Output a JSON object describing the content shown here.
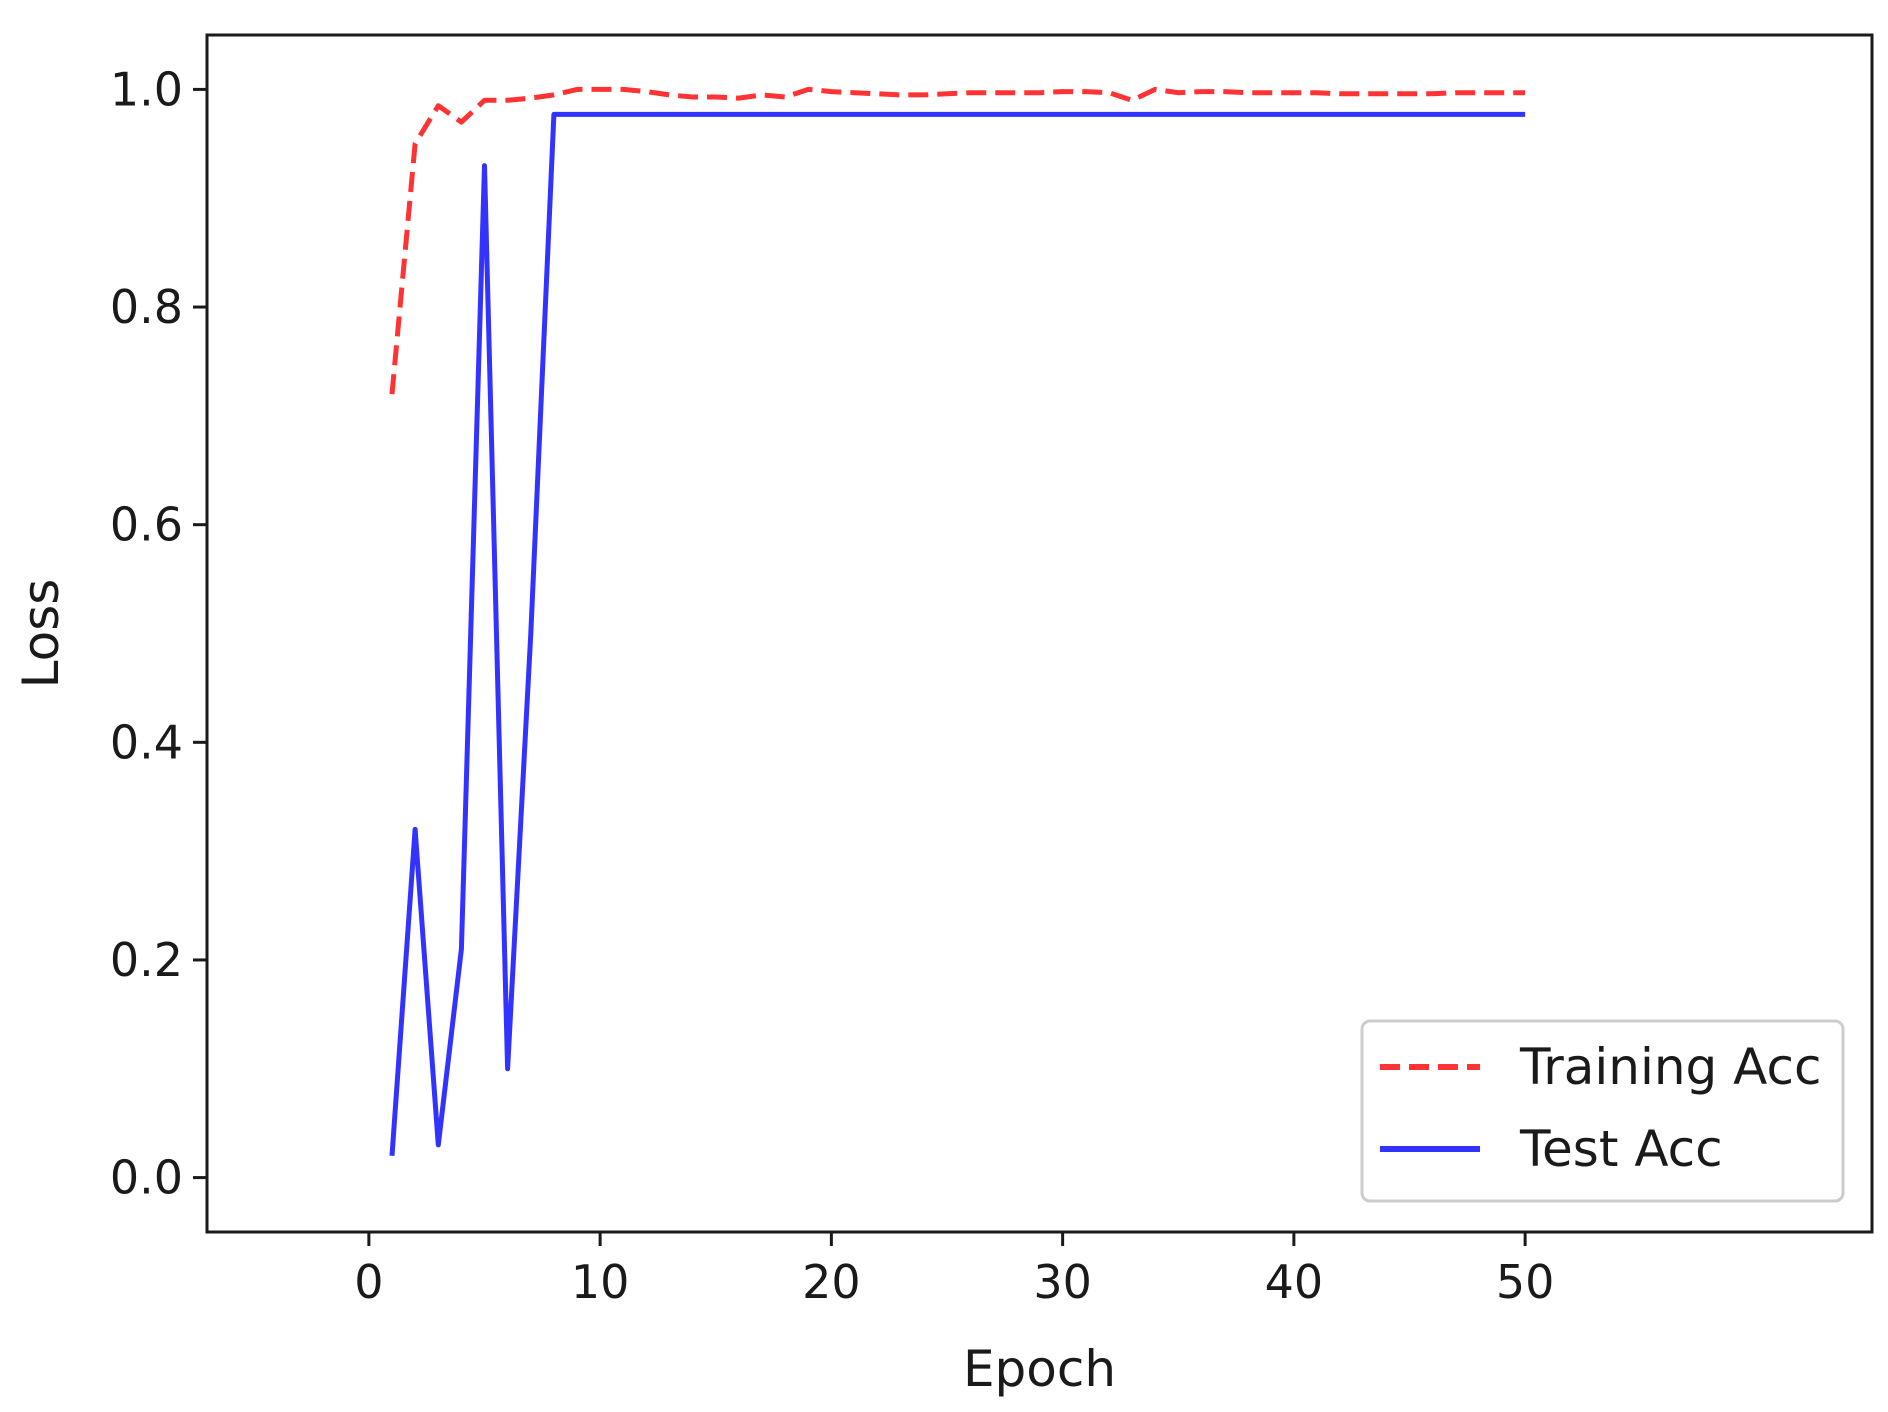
{
  "chart_data": {
    "type": "line",
    "title": "",
    "xlabel": "Epoch",
    "ylabel": "Loss",
    "xlim": [
      -7,
      65
    ],
    "ylim": [
      -0.05,
      1.05
    ],
    "xticks": [
      0,
      10,
      20,
      30,
      40,
      50
    ],
    "xtick_labels": [
      "0",
      "10",
      "20",
      "30",
      "40",
      "50"
    ],
    "yticks": [
      0.0,
      0.2,
      0.4,
      0.6,
      0.8,
      1.0
    ],
    "ytick_labels": [
      "0.0",
      "0.2",
      "0.4",
      "0.6",
      "0.8",
      "1.0"
    ],
    "grid": false,
    "legend_position": "lower-right",
    "x": [
      1,
      2,
      3,
      4,
      5,
      6,
      7,
      8,
      9,
      10,
      11,
      12,
      13,
      14,
      15,
      16,
      17,
      18,
      19,
      20,
      21,
      22,
      23,
      24,
      25,
      26,
      27,
      28,
      29,
      30,
      31,
      32,
      33,
      34,
      35,
      36,
      37,
      38,
      39,
      40,
      41,
      42,
      43,
      44,
      45,
      46,
      47,
      48,
      49,
      50
    ],
    "series": [
      {
        "name": "Training Acc",
        "color": "#ff3333",
        "line_style": "dashed",
        "values": [
          0.72,
          0.95,
          0.985,
          0.97,
          0.99,
          0.99,
          0.992,
          0.995,
          1.0,
          1.0,
          1.0,
          0.998,
          0.995,
          0.993,
          0.993,
          0.992,
          0.995,
          0.993,
          1.0,
          0.998,
          0.997,
          0.996,
          0.995,
          0.995,
          0.996,
          0.997,
          0.997,
          0.997,
          0.997,
          0.998,
          0.998,
          0.997,
          0.99,
          1.0,
          0.997,
          0.998,
          0.998,
          0.997,
          0.997,
          0.997,
          0.997,
          0.996,
          0.996,
          0.996,
          0.996,
          0.996,
          0.997,
          0.997,
          0.997,
          0.997
        ]
      },
      {
        "name": "Test Acc",
        "color": "#3333ff",
        "line_style": "solid",
        "values": [
          0.02,
          0.32,
          0.03,
          0.21,
          0.93,
          0.1,
          0.5,
          0.977,
          0.977,
          0.977,
          0.977,
          0.977,
          0.977,
          0.977,
          0.977,
          0.977,
          0.977,
          0.977,
          0.977,
          0.977,
          0.977,
          0.977,
          0.977,
          0.977,
          0.977,
          0.977,
          0.977,
          0.977,
          0.977,
          0.977,
          0.977,
          0.977,
          0.977,
          0.977,
          0.977,
          0.977,
          0.977,
          0.977,
          0.977,
          0.977,
          0.977,
          0.977,
          0.977,
          0.977,
          0.977,
          0.977,
          0.977,
          0.977,
          0.977,
          0.977
        ]
      }
    ]
  }
}
